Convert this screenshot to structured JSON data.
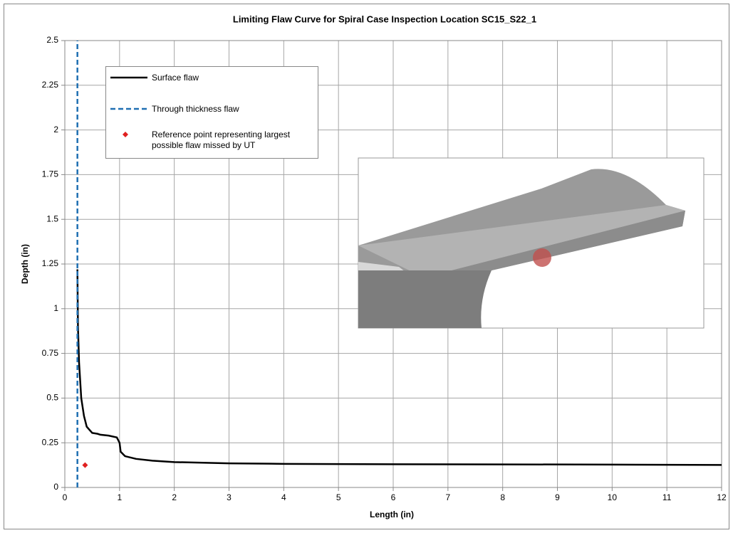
{
  "chart_data": {
    "type": "line",
    "title": "Limiting Flaw Curve for Spiral Case Inspection Location SC15_S22_1",
    "x_label": "Length (in)",
    "y_label": "Depth (in)",
    "xlim": [
      0,
      12
    ],
    "ylim": [
      0,
      2.5
    ],
    "xticks": [
      0,
      1,
      2,
      3,
      4,
      5,
      6,
      7,
      8,
      9,
      10,
      11,
      12
    ],
    "yticks": [
      0,
      0.25,
      0.5,
      0.75,
      1,
      1.25,
      1.5,
      1.75,
      2,
      2.25,
      2.5
    ],
    "grid": true,
    "series": [
      {
        "name": "Surface flaw",
        "color": "#000000",
        "style": "solid",
        "x": [
          0.23,
          0.24,
          0.26,
          0.3,
          0.35,
          0.4,
          0.5,
          0.6,
          0.65,
          0.8,
          0.95,
          1.0,
          1.02,
          1.1,
          1.3,
          1.6,
          2,
          3,
          4,
          6,
          8,
          10,
          12
        ],
        "values": [
          1.22,
          0.9,
          0.7,
          0.5,
          0.4,
          0.34,
          0.305,
          0.3,
          0.295,
          0.29,
          0.28,
          0.25,
          0.2,
          0.175,
          0.16,
          0.15,
          0.142,
          0.135,
          0.132,
          0.13,
          0.129,
          0.128,
          0.126
        ]
      },
      {
        "name": "Through thickness flaw",
        "color": "#1f6fb2",
        "style": "dashed",
        "x": [
          0.23,
          0.23
        ],
        "values": [
          0,
          2.5
        ]
      },
      {
        "name": "Reference point representing largest possible flaw missed by UT",
        "color": "#e02020",
        "style": "marker",
        "x": [
          0.37
        ],
        "values": [
          0.125
        ]
      }
    ]
  }
}
